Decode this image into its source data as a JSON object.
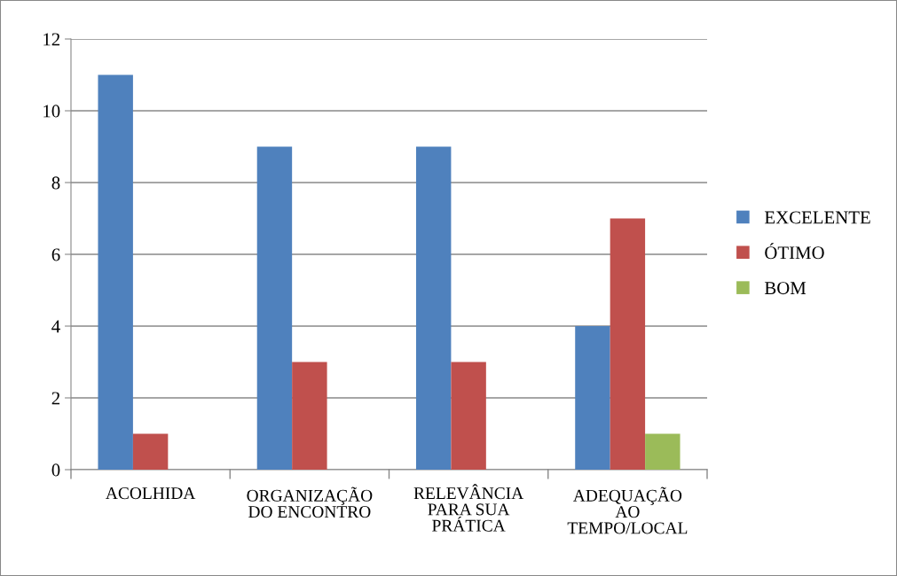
{
  "chart_data": {
    "type": "bar",
    "categories": [
      "ACOLHIDA",
      "ORGANIZAÇÃO\nDO ENCONTRO",
      "RELEVÂNCIA\nPARA SUA\nPRÁTICA",
      "ADEQUAÇÃO\nAO\nTEMPO/LOCAL"
    ],
    "series": [
      {
        "name": "EXCELENTE",
        "color": "#4f81bd",
        "values": [
          11,
          9,
          9,
          4
        ]
      },
      {
        "name": "ÓTIMO",
        "color": "#c0504d",
        "values": [
          1,
          3,
          3,
          7
        ]
      },
      {
        "name": "BOM",
        "color": "#9bbb59",
        "values": [
          0,
          0,
          0,
          1
        ]
      }
    ],
    "ylim": [
      0,
      12
    ],
    "yticks": [
      0,
      2,
      4,
      6,
      8,
      10,
      12
    ],
    "grid": "y",
    "legend": "right"
  }
}
